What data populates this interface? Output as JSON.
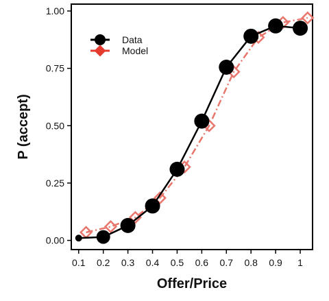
{
  "chart_data": {
    "type": "line",
    "xlabel": "Offer/Price",
    "ylabel": "P (accept)",
    "xlim": [
      0.07,
      1.05
    ],
    "ylim": [
      -0.04,
      1.03
    ],
    "x_ticks": [
      "0.1",
      "0.2",
      "0.3",
      "0.4",
      "0.5",
      "0.6",
      "0.7",
      "0.8",
      "0.9",
      "1"
    ],
    "y_ticks": [
      "0.00",
      "0.25",
      "0.50",
      "0.75",
      "1.00"
    ],
    "legend_placement": "top-left",
    "grid": false,
    "series": [
      {
        "name": "Data",
        "color": "#000000",
        "marker": "filled-circle",
        "line": "solid",
        "x": [
          0.1,
          0.2,
          0.3,
          0.4,
          0.5,
          0.6,
          0.7,
          0.8,
          0.9,
          1.0
        ],
        "y": [
          0.01,
          0.015,
          0.065,
          0.15,
          0.31,
          0.52,
          0.755,
          0.89,
          0.935,
          0.925
        ]
      },
      {
        "name": "Model",
        "color": "#e8766c",
        "marker": "open-diamond",
        "line": "dash-dot",
        "x": [
          0.13,
          0.23,
          0.33,
          0.43,
          0.53,
          0.63,
          0.73,
          0.83,
          0.93,
          1.03
        ],
        "y": [
          0.035,
          0.06,
          0.1,
          0.185,
          0.32,
          0.5,
          0.735,
          0.885,
          0.95,
          0.97
        ]
      }
    ]
  },
  "legend_colors": {
    "data_marker": "#000000",
    "model_marker": "#e53a2e"
  }
}
